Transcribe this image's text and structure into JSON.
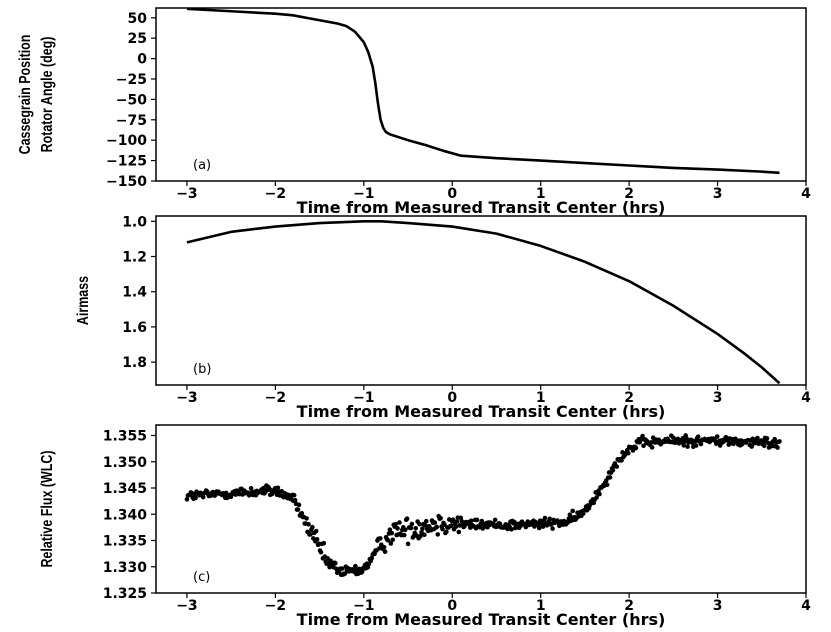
{
  "chart_data": [
    {
      "type": "line",
      "panel_label": "(a)",
      "xlabel": "Time from Measured Transit Center (hrs)",
      "ylabel": [
        "Cassegrain Position",
        "Rotator Angle (deg)"
      ],
      "xlim": [
        -3.35,
        4.0
      ],
      "ylim": [
        -150,
        62
      ],
      "xticks": [
        -3,
        -2,
        -1,
        0,
        1,
        2,
        3,
        4
      ],
      "xtick_labels": [
        "−3",
        "−2",
        "−1",
        "0",
        "1",
        "2",
        "3",
        "4"
      ],
      "yticks": [
        50,
        25,
        0,
        -25,
        -50,
        -75,
        -100,
        -125,
        -150
      ],
      "ytick_labels": [
        "50",
        "25",
        "0",
        "−25",
        "−50",
        "−75",
        "−100",
        "−125",
        "−150"
      ],
      "series": [
        {
          "x": [
            -3.0,
            -2.5,
            -2.0,
            -1.8,
            -1.6,
            -1.4,
            -1.3,
            -1.2,
            -1.1,
            -1.0,
            -0.95,
            -0.9,
            -0.87,
            -0.84,
            -0.81,
            -0.78,
            -0.75,
            -0.72,
            -0.7,
            -0.5,
            -0.3,
            -0.1,
            0.1,
            0.5,
            1.0,
            1.5,
            2.0,
            2.5,
            3.0,
            3.5,
            3.7
          ],
          "y": [
            61,
            58,
            55,
            53,
            49,
            45,
            43,
            40,
            33,
            20,
            8,
            -10,
            -30,
            -55,
            -75,
            -85,
            -90,
            -92,
            -93,
            -100,
            -106,
            -113,
            -119,
            -122,
            -125,
            -128,
            -131,
            -134,
            -136,
            -138.5,
            -140
          ]
        }
      ]
    },
    {
      "type": "line",
      "panel_label": "(b)",
      "xlabel": "Time from Measured Transit Center (hrs)",
      "ylabel": [
        "Airmass"
      ],
      "xlim": [
        -3.35,
        4.0
      ],
      "ylim": [
        1.93,
        0.97
      ],
      "xticks": [
        -3,
        -2,
        -1,
        0,
        1,
        2,
        3,
        4
      ],
      "xtick_labels": [
        "−3",
        "−2",
        "−1",
        "0",
        "1",
        "2",
        "3",
        "4"
      ],
      "yticks": [
        1.0,
        1.2,
        1.4,
        1.6,
        1.8
      ],
      "ytick_labels": [
        "1.0",
        "1.2",
        "1.4",
        "1.6",
        "1.8"
      ],
      "series": [
        {
          "x": [
            -3.0,
            -2.5,
            -2.0,
            -1.5,
            -1.0,
            -0.8,
            -0.5,
            0.0,
            0.5,
            1.0,
            1.5,
            2.0,
            2.5,
            3.0,
            3.3,
            3.5,
            3.7
          ],
          "y": [
            1.12,
            1.06,
            1.03,
            1.01,
            1.0,
            1.0,
            1.01,
            1.03,
            1.07,
            1.14,
            1.23,
            1.34,
            1.48,
            1.64,
            1.75,
            1.83,
            1.92
          ]
        }
      ]
    },
    {
      "type": "scatter",
      "panel_label": "(c)",
      "xlabel": "Time from Measured Transit Center (hrs)",
      "ylabel": [
        "Relative Flux (WLC)"
      ],
      "xlim": [
        -3.35,
        4.0
      ],
      "ylim": [
        1.325,
        1.357
      ],
      "xticks": [
        -3,
        -2,
        -1,
        0,
        1,
        2,
        3,
        4
      ],
      "xtick_labels": [
        "−3",
        "−2",
        "−1",
        "0",
        "1",
        "2",
        "3",
        "4"
      ],
      "yticks": [
        1.355,
        1.35,
        1.345,
        1.34,
        1.335,
        1.33,
        1.325
      ],
      "ytick_labels": [
        "1.355",
        "1.350",
        "1.345",
        "1.340",
        "1.335",
        "1.330",
        "1.325"
      ],
      "trend_x": [
        -3.0,
        -2.5,
        -2.0,
        -1.8,
        -1.6,
        -1.4,
        -1.25,
        -1.0,
        -0.85,
        -0.7,
        -0.4,
        -0.1,
        0.2,
        0.8,
        1.3,
        1.5,
        1.7,
        1.9,
        2.1,
        2.5,
        3.0,
        3.7
      ],
      "trend_y": [
        1.3435,
        1.344,
        1.3445,
        1.343,
        1.3365,
        1.3305,
        1.329,
        1.3295,
        1.333,
        1.3365,
        1.3375,
        1.3385,
        1.338,
        1.338,
        1.3385,
        1.3405,
        1.3455,
        1.351,
        1.3535,
        1.354,
        1.354,
        1.3535
      ],
      "scatter_sd": 0.0005,
      "n_points": 620
    }
  ]
}
